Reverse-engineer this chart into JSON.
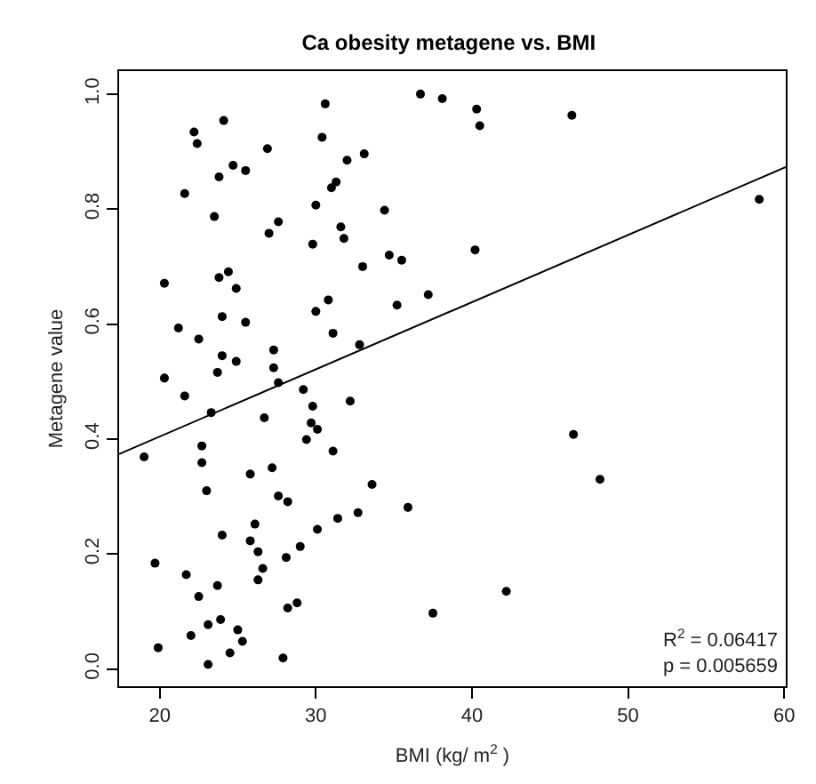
{
  "chart_data": {
    "type": "scatter",
    "title": "Ca obesity metagene vs. BMI",
    "xlabel": "BMI (kg/ m$^{2}$ )",
    "ylabel": "Metagene value",
    "annotations": [
      "R$^{2}$ = 0.06417",
      "p = 0.005659"
    ],
    "xlim": [
      17.4,
      60.1
    ],
    "ylim": [
      -0.03,
      1.04
    ],
    "xticks": [
      20,
      30,
      40,
      50,
      60
    ],
    "yticks": [
      {
        "value": 0,
        "label": "0.0"
      },
      {
        "value": 0.2,
        "label": "0.2"
      },
      {
        "value": 0.4,
        "label": "0.4"
      },
      {
        "value": 0.6,
        "label": "0.6"
      },
      {
        "value": 0.8,
        "label": "0.8"
      },
      {
        "value": 1,
        "label": "1.0"
      }
    ],
    "marker": "circle",
    "series": [
      {
        "color": "#000000",
        "x": [
          36.7,
          38.1,
          30.6,
          24.1,
          22.2,
          22.4,
          30.4,
          26.9,
          33.1,
          32.0,
          24.7,
          23.8,
          25.5,
          31.3,
          31.0,
          21.6,
          30.0,
          34.4,
          23.5,
          27.6,
          27.0,
          31.6,
          31.8,
          29.8,
          34.7,
          35.5,
          33.0,
          20.3,
          23.8,
          24.4,
          24.9,
          30.8,
          30.0,
          35.2,
          37.2,
          24.0,
          25.5,
          21.2,
          22.5,
          31.1,
          32.8,
          24.0,
          24.9,
          27.3,
          27.3,
          23.7,
          20.3,
          27.6,
          40.3,
          40.5,
          46.4,
          58.4,
          40.2,
          21.6,
          29.2,
          23.3,
          29.8,
          32.2,
          26.7,
          29.7,
          30.1,
          29.4,
          22.7,
          19.0,
          31.1,
          22.7,
          27.2,
          25.8,
          33.6,
          23.0,
          27.6,
          28.2,
          35.9,
          32.7,
          31.4,
          26.1,
          30.1,
          24.0,
          25.8,
          29.0,
          26.3,
          19.7,
          28.1,
          26.6,
          21.7,
          26.3,
          23.7,
          22.5,
          28.8,
          28.2,
          37.5,
          23.9,
          23.1,
          25.0,
          22.0,
          25.3,
          19.9,
          24.5,
          27.9,
          23.1,
          46.5,
          48.2,
          42.2
        ],
        "values": [
          1.0,
          0.992,
          0.983,
          0.954,
          0.934,
          0.914,
          0.925,
          0.905,
          0.896,
          0.885,
          0.876,
          0.856,
          0.867,
          0.847,
          0.837,
          0.827,
          0.807,
          0.798,
          0.787,
          0.778,
          0.758,
          0.769,
          0.749,
          0.739,
          0.72,
          0.711,
          0.7,
          0.671,
          0.681,
          0.691,
          0.662,
          0.642,
          0.622,
          0.633,
          0.651,
          0.613,
          0.603,
          0.593,
          0.574,
          0.584,
          0.564,
          0.545,
          0.535,
          0.555,
          0.524,
          0.516,
          0.506,
          0.498,
          0.974,
          0.945,
          0.963,
          0.817,
          0.729,
          0.475,
          0.486,
          0.446,
          0.457,
          0.466,
          0.437,
          0.428,
          0.417,
          0.399,
          0.388,
          0.369,
          0.379,
          0.359,
          0.35,
          0.339,
          0.321,
          0.31,
          0.301,
          0.291,
          0.281,
          0.272,
          0.262,
          0.252,
          0.243,
          0.233,
          0.223,
          0.213,
          0.204,
          0.184,
          0.194,
          0.175,
          0.164,
          0.155,
          0.145,
          0.126,
          0.115,
          0.106,
          0.097,
          0.086,
          0.077,
          0.068,
          0.058,
          0.048,
          0.037,
          0.028,
          0.019,
          0.008,
          0.408,
          0.33,
          0.135
        ]
      },
      {
        "type": "line",
        "color": "#000000",
        "marker": "none",
        "line_style": "solid",
        "x": [
          17.4,
          60.1
        ],
        "values": [
          0.374,
          0.873
        ]
      }
    ]
  }
}
